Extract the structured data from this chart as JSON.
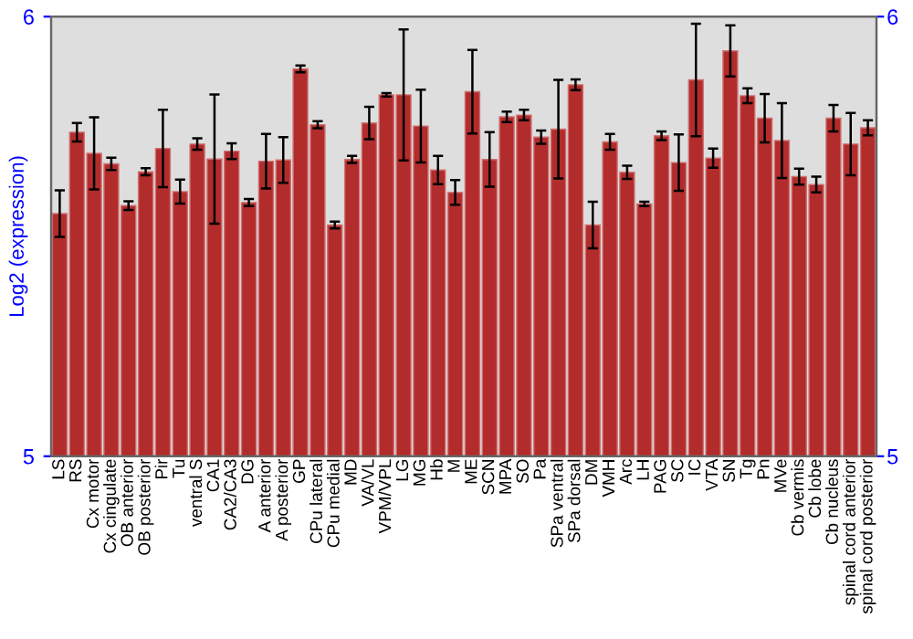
{
  "chart_data": {
    "type": "bar",
    "ylabel": "Log2 (expression)",
    "categories": [
      "LS",
      "RS",
      "Cx motor",
      "Cx cingulate",
      "OB anterior",
      "OB posterior",
      "Pir",
      "Tu",
      "ventral S",
      "CA1",
      "CA2/CA3",
      "DG",
      "A anterior",
      "A posterior",
      "GP",
      "CPu lateral",
      "CPu medial",
      "MD",
      "VA/VL",
      "VPM/VPL",
      "LG",
      "MG",
      "Hb",
      "M",
      "ME",
      "SCN",
      "MPA",
      "SO",
      "Pa",
      "SPa ventral",
      "SPa dorsal",
      "DM",
      "VMH",
      "Arc",
      "LH",
      "PAG",
      "SC",
      "IC",
      "VTA",
      "SN",
      "Tg",
      "Pn",
      "MVe",
      "Cb vermis",
      "Cb lobe",
      "Cb nucleus",
      "spinal cord anterior",
      "spinal cord posterior"
    ],
    "values": [
      5.552,
      5.737,
      5.689,
      5.665,
      5.57,
      5.647,
      5.7,
      5.602,
      5.71,
      5.676,
      5.694,
      5.577,
      5.671,
      5.674,
      5.881,
      5.754,
      5.526,
      5.675,
      5.758,
      5.822,
      5.822,
      5.751,
      5.651,
      5.6,
      5.829,
      5.675,
      5.772,
      5.776,
      5.726,
      5.744,
      5.845,
      5.526,
      5.715,
      5.646,
      5.574,
      5.729,
      5.668,
      5.856,
      5.678,
      5.922,
      5.82,
      5.769,
      5.718,
      5.636,
      5.618,
      5.769,
      5.71,
      5.747
    ],
    "errors": [
      0.053,
      0.021,
      0.082,
      0.014,
      0.01,
      0.008,
      0.088,
      0.027,
      0.013,
      0.147,
      0.018,
      0.008,
      0.062,
      0.052,
      0.008,
      0.008,
      0.008,
      0.008,
      0.037,
      0.004,
      0.149,
      0.083,
      0.032,
      0.028,
      0.095,
      0.062,
      0.012,
      0.012,
      0.015,
      0.112,
      0.012,
      0.053,
      0.018,
      0.015,
      0.005,
      0.01,
      0.064,
      0.128,
      0.022,
      0.058,
      0.017,
      0.055,
      0.085,
      0.018,
      0.018,
      0.03,
      0.071,
      0.017
    ],
    "color": "#b22c2c",
    "ylim": [
      5,
      6
    ],
    "yticks": [
      5,
      6
    ],
    "y2lim": [
      5,
      6
    ],
    "y2ticks": [
      5,
      6
    ],
    "grid": false,
    "legend": false
  }
}
